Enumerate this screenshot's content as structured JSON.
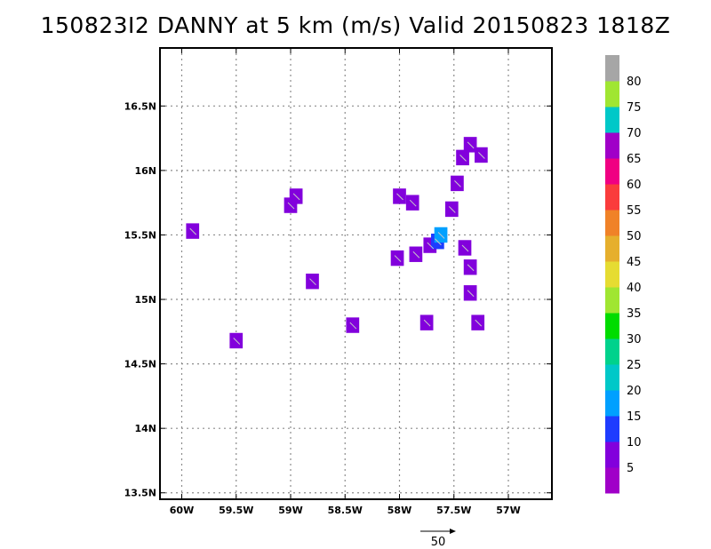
{
  "title": "150823I2 DANNY at 5 km (m/s) Valid 20150823 1818Z",
  "chart_data": {
    "type": "heatmap",
    "title": "150823I2 DANNY at 5 km (m/s) Valid 20150823 1818Z",
    "x_ticks": [
      "60W",
      "59.5W",
      "59W",
      "58.5W",
      "58W",
      "57.5W",
      "57W"
    ],
    "x_tick_values": [
      -60,
      -59.5,
      -59,
      -58.5,
      -58,
      -57.5,
      -57
    ],
    "y_ticks": [
      "13.5N",
      "14N",
      "14.5N",
      "15N",
      "15.5N",
      "16N",
      "16.5N"
    ],
    "y_tick_values": [
      13.5,
      14,
      14.5,
      15,
      15.5,
      16,
      16.5
    ],
    "xlim": [
      -60.2,
      -56.6
    ],
    "ylim": [
      13.45,
      16.95
    ],
    "grid": true,
    "colorbar": {
      "levels": [
        "5",
        "10",
        "15",
        "20",
        "25",
        "30",
        "35",
        "40",
        "45",
        "50",
        "55",
        "60",
        "65",
        "70",
        "75",
        "80"
      ],
      "colors": [
        "#a000c8",
        "#8200dc",
        "#1e3cff",
        "#00a0ff",
        "#00c8c8",
        "#00d28c",
        "#00dc00",
        "#a0e632",
        "#e6dc32",
        "#e6af2d",
        "#f08228",
        "#fa3c3c",
        "#f00082",
        "#a000c8",
        "#00c8c8",
        "#a0e632",
        "#a6a6a6"
      ]
    },
    "reference_vector_label": "50",
    "cells": [
      {
        "lon": -59.9,
        "lat": 15.53,
        "value": 5
      },
      {
        "lon": -59.5,
        "lat": 14.68,
        "value": 5
      },
      {
        "lon": -59.0,
        "lat": 15.73,
        "value": 5
      },
      {
        "lon": -58.95,
        "lat": 15.8,
        "value": 5
      },
      {
        "lon": -58.8,
        "lat": 15.14,
        "value": 5
      },
      {
        "lon": -58.43,
        "lat": 14.8,
        "value": 5
      },
      {
        "lon": -58.02,
        "lat": 15.32,
        "value": 5
      },
      {
        "lon": -58.0,
        "lat": 15.8,
        "value": 5
      },
      {
        "lon": -57.88,
        "lat": 15.75,
        "value": 5
      },
      {
        "lon": -57.85,
        "lat": 15.35,
        "value": 5
      },
      {
        "lon": -57.75,
        "lat": 14.82,
        "value": 5
      },
      {
        "lon": -57.72,
        "lat": 15.42,
        "value": 5
      },
      {
        "lon": -57.65,
        "lat": 15.45,
        "value": 12
      },
      {
        "lon": -57.62,
        "lat": 15.5,
        "value": 15
      },
      {
        "lon": -57.52,
        "lat": 15.7,
        "value": 5
      },
      {
        "lon": -57.47,
        "lat": 15.9,
        "value": 5
      },
      {
        "lon": -57.42,
        "lat": 16.1,
        "value": 5
      },
      {
        "lon": -57.35,
        "lat": 16.2,
        "value": 5
      },
      {
        "lon": -57.25,
        "lat": 16.12,
        "value": 5
      },
      {
        "lon": -57.4,
        "lat": 15.4,
        "value": 5
      },
      {
        "lon": -57.35,
        "lat": 15.25,
        "value": 5
      },
      {
        "lon": -57.35,
        "lat": 15.05,
        "value": 5
      },
      {
        "lon": -57.28,
        "lat": 14.82,
        "value": 5
      }
    ]
  }
}
